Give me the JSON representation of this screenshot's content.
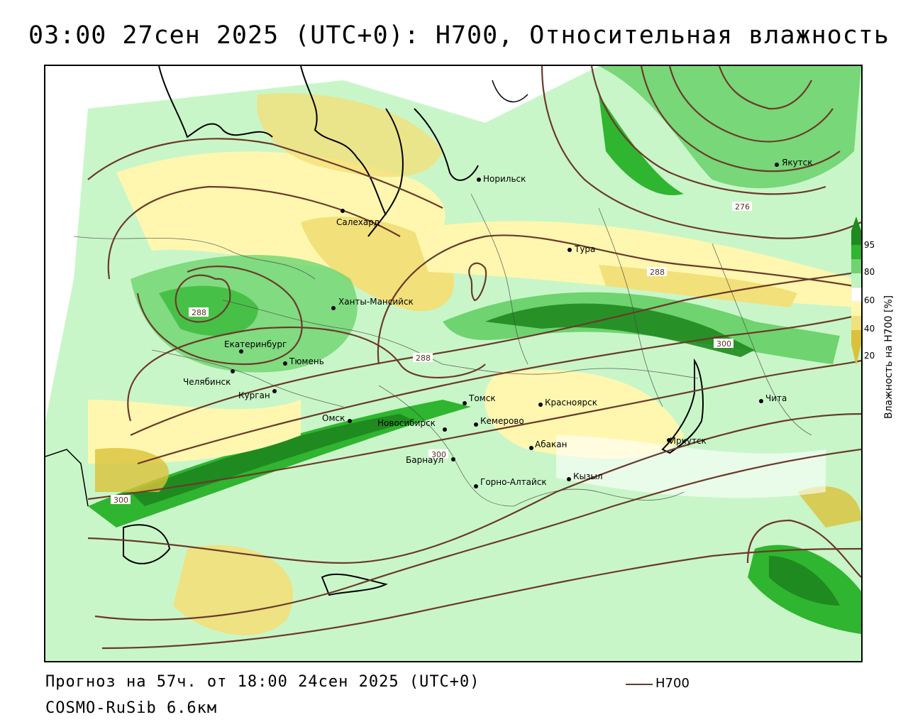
{
  "title": "03:00 27сен 2025 (UTC+0): H700, Относительная влажность",
  "footer": {
    "forecast": "Прогноз на 57ч. от 18:00 24сен 2025 (UTC+0)",
    "model": "COSMO-RuSib 6.6км"
  },
  "legend": {
    "series_label": "H700",
    "line_color": "#6b3a2a"
  },
  "colorbar": {
    "title": "Влажность на H700 [%]",
    "ticks": [
      "95",
      "80",
      "60",
      "40",
      "20"
    ],
    "colors": {
      "c95": "#1f8a1f",
      "c80": "#2fb52f",
      "c70": "#6fd46f",
      "c60": "#bff5bf",
      "c50": "#ffffff",
      "c40": "#fff7b0",
      "c30": "#f2e07a",
      "c20": "#d9c23a"
    }
  },
  "cities": [
    {
      "name": "Норильск"
    },
    {
      "name": "Салехард"
    },
    {
      "name": "Тура"
    },
    {
      "name": "Якутск"
    },
    {
      "name": "Ханты-Мансийск"
    },
    {
      "name": "Екатеринбург"
    },
    {
      "name": "Тюмень"
    },
    {
      "name": "Челябинск"
    },
    {
      "name": "Курган"
    },
    {
      "name": "Омск"
    },
    {
      "name": "Новосибирск"
    },
    {
      "name": "Томск"
    },
    {
      "name": "Кемерово"
    },
    {
      "name": "Красноярск"
    },
    {
      "name": "Барнаул"
    },
    {
      "name": "Абакан"
    },
    {
      "name": "Горно-Алтайск"
    },
    {
      "name": "Кызыл"
    },
    {
      "name": "Иркутск"
    },
    {
      "name": "Чита"
    }
  ],
  "contour_labels": [
    "276",
    "288",
    "288",
    "288",
    "300",
    "300",
    "300"
  ]
}
